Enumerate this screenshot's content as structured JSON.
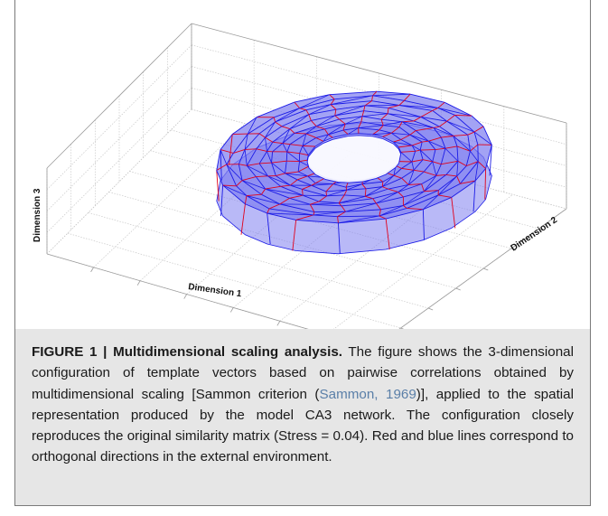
{
  "figure": {
    "axes": {
      "x_label": "Dimension 1",
      "y_label": "Dimension 2",
      "z_label": "Dimension 3"
    },
    "colors": {
      "torus_fill": "#7f7ff0",
      "edge_red": "#e0001b",
      "edge_blue": "#1a1ae6",
      "grid": "#c8c8c8",
      "caption_bg": "#e6e6e6"
    }
  },
  "caption": {
    "label": "FIGURE 1 | Multidimensional scaling analysis.",
    "text_part1": " The figure shows the 3-dimensional configuration of template vectors based on pairwise correlations obtained by multidimensional scaling [Sammon criterion (",
    "citation": "Sammon, 1969",
    "text_part2": ")], applied to the spatial representation produced by the model CA3 network. The configuration closely reproduces the original similarity matrix (Stress = 0.04). Red and blue lines correspond to orthogonal directions in the external environment."
  }
}
